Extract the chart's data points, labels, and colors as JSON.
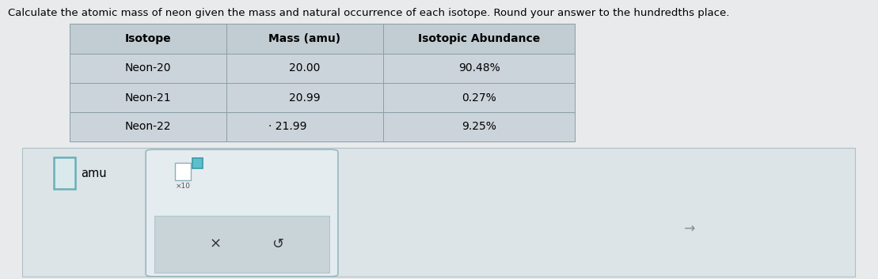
{
  "title": "Calculate the atomic mass of neon given the mass and natural occurrence of each isotope. Round your answer to the hundredths place.",
  "title_fontsize": 9.5,
  "table_headers": [
    "Isotope",
    "Mass (amu)",
    "Isotopic Abundance"
  ],
  "table_rows": [
    [
      "Neon-20",
      "20.00",
      "90.48%"
    ],
    [
      "Neon-21",
      "20.99",
      "0.27%"
    ],
    [
      "Neon-22",
      "· 21.99",
      "9.25%"
    ]
  ],
  "bg_color": "#e8eaeb",
  "table_bg_light": "#cdd5db",
  "table_header_bg": "#c2ccd3",
  "cell_bg": "#ccd4db",
  "panel_bg": "#dde3e6",
  "panel_border": "#9eb5be",
  "answer_box_border": "#6aafb8",
  "answer_box_fill": "#daeaec",
  "rp_bg": "#e4ecef",
  "rp_border": "#9ab8c2",
  "sq_border": "#8ab0ba",
  "sq_fill": "#ffffff",
  "ssq_fill": "#5bc0cc",
  "ssq_border": "#3a9aaa",
  "btn_bg": "#c8d4d8",
  "btn_border": "#9ab8c2",
  "cursor_color": "#888888"
}
